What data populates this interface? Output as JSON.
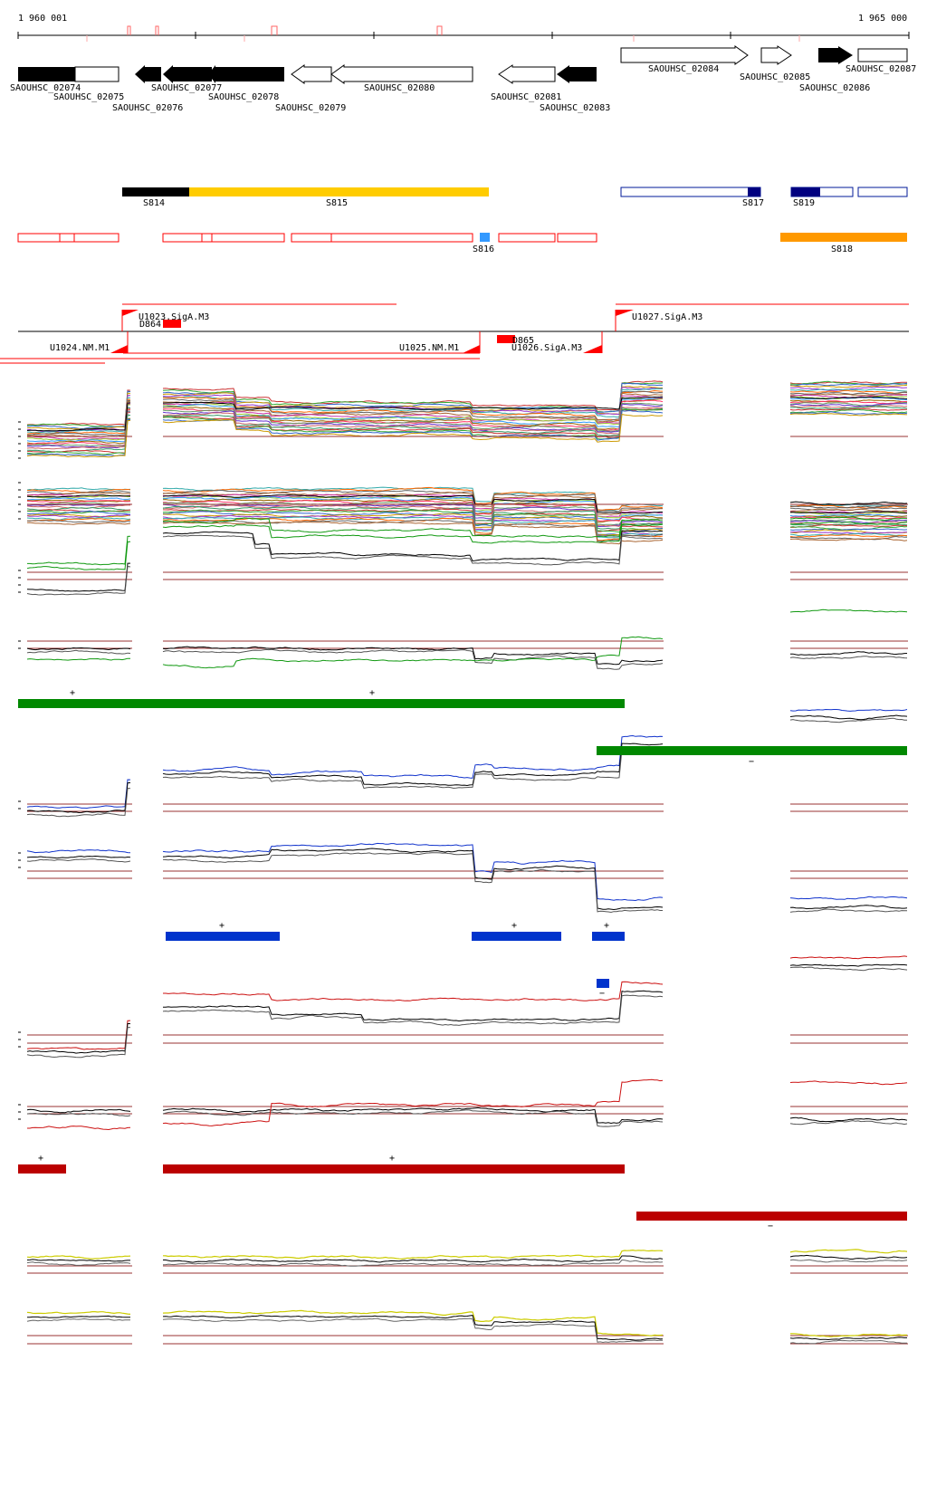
{
  "ruler": {
    "start_label": "1 960 001",
    "end_label": "1 965 000"
  },
  "genes": [
    {
      "name": "SAOUHSC_02074",
      "strand": "+",
      "fill": "black"
    },
    {
      "name": "SAOUHSC_02075",
      "strand": "+",
      "fill": "white"
    },
    {
      "name": "SAOUHSC_02076",
      "strand": "-",
      "fill": "black"
    },
    {
      "name": "SAOUHSC_02077",
      "strand": "-",
      "fill": "black"
    },
    {
      "name": "SAOUHSC_02078",
      "strand": "-",
      "fill": "black"
    },
    {
      "name": "SAOUHSC_02079",
      "strand": "-",
      "fill": "white"
    },
    {
      "name": "SAOUHSC_02080",
      "strand": "-",
      "fill": "white"
    },
    {
      "name": "SAOUHSC_02081",
      "strand": "-",
      "fill": "white"
    },
    {
      "name": "SAOUHSC_02083",
      "strand": "-",
      "fill": "black"
    },
    {
      "name": "SAOUHSC_02084",
      "strand": "+",
      "fill": "white"
    },
    {
      "name": "SAOUHSC_02085",
      "strand": "+",
      "fill": "white"
    },
    {
      "name": "SAOUHSC_02086",
      "strand": "+",
      "fill": "black"
    },
    {
      "name": "SAOUHSC_02087",
      "strand": "+",
      "fill": "white"
    }
  ],
  "segments": [
    "S814",
    "S815",
    "S816",
    "S817",
    "S818",
    "S819"
  ],
  "promoters": [
    "U1023.SigA.M3",
    "U1024.NM.M1",
    "U1025.NM.M1",
    "U1026.SigA.M3",
    "U1027.SigA.M3"
  ],
  "terminators": [
    "D864",
    "D865"
  ],
  "block_strand_marks": {
    "plus": "+",
    "minus": "−"
  },
  "colors": {
    "gene_black": "#000000",
    "segment_black": "#000000",
    "segment_gold": "#ffcc00",
    "segment_navy": "#000080",
    "segment_orange": "#ff9900",
    "segment_lightblue": "#3399ff",
    "red_feature": "#ff0000",
    "green_block": "#008800",
    "blue_block": "#0033cc",
    "red_block": "#bb0000",
    "threshold_line": "#993333",
    "track_green": "#119911",
    "track_blue": "#1133cc",
    "track_red": "#cc1111",
    "track_yellow": "#cccc00"
  }
}
